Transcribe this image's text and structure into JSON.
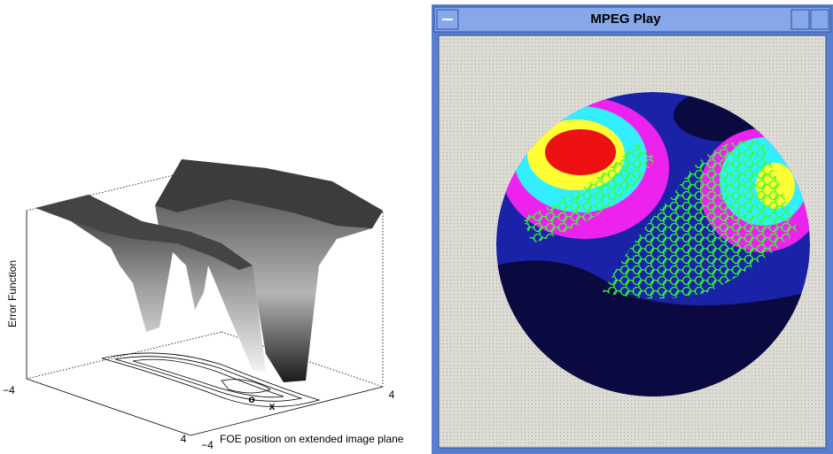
{
  "figure": {
    "z_label": "Error Function",
    "x_label": "FOE position on extended image plane",
    "tick_labels": [
      "−4",
      "4",
      "−4",
      "4"
    ],
    "markers": [
      "o",
      "x"
    ]
  },
  "window": {
    "title": "MPEG Play"
  }
}
